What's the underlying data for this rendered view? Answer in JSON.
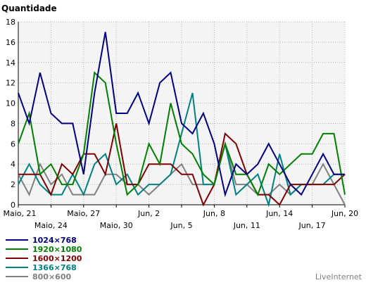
{
  "chart_data": {
    "type": "line",
    "title": "",
    "ylabel": "Quantidade",
    "xlabel": "",
    "ylim": [
      0,
      18
    ],
    "yticks": [
      0,
      2,
      4,
      6,
      8,
      10,
      12,
      14,
      16,
      18
    ],
    "grid": true,
    "x_count": 31,
    "xticks": [
      {
        "index": 0,
        "label": "Maio, 21",
        "row": 0
      },
      {
        "index": 3,
        "label": "Maio, 24",
        "row": 1
      },
      {
        "index": 6,
        "label": "Maio, 27",
        "row": 0
      },
      {
        "index": 9,
        "label": "Maio, 30",
        "row": 1
      },
      {
        "index": 12,
        "label": "Jun, 2",
        "row": 0
      },
      {
        "index": 15,
        "label": "Jun, 5",
        "row": 1
      },
      {
        "index": 18,
        "label": "Jun, 8",
        "row": 0
      },
      {
        "index": 21,
        "label": "Jun, 11",
        "row": 1
      },
      {
        "index": 24,
        "label": "Jun, 14",
        "row": 0
      },
      {
        "index": 27,
        "label": "Jun, 17",
        "row": 1
      },
      {
        "index": 30,
        "label": "Jun, 20",
        "row": 0
      }
    ],
    "legend_position": "bottom-left",
    "series": [
      {
        "name": "1024×768",
        "color": "#000080",
        "values": [
          11,
          8,
          13,
          9,
          8,
          8,
          3,
          11,
          17,
          9,
          9,
          11,
          8,
          12,
          13,
          8,
          7,
          9,
          6,
          1,
          4,
          3,
          4,
          6,
          4,
          2,
          1,
          3,
          5,
          3,
          3
        ]
      },
      {
        "name": "1920×1080",
        "color": "#008000",
        "values": [
          6,
          9,
          3,
          4,
          2,
          2,
          5,
          13,
          12,
          6,
          1,
          2,
          6,
          4,
          10,
          6,
          5,
          3,
          2,
          6,
          3,
          3,
          1,
          4,
          3,
          4,
          5,
          5,
          7,
          7,
          1
        ]
      },
      {
        "name": "1600×1200",
        "color": "#800000",
        "values": [
          3,
          3,
          3,
          1,
          4,
          3,
          5,
          5,
          3,
          8,
          2,
          2,
          4,
          4,
          4,
          3,
          3,
          0,
          2,
          7,
          6,
          3,
          1,
          1,
          0,
          2,
          2,
          2,
          2,
          2,
          3
        ]
      },
      {
        "name": "1366×768",
        "color": "#008080",
        "values": [
          2,
          4,
          2,
          1,
          1,
          3,
          1,
          4,
          5,
          2,
          3,
          1,
          2,
          2,
          3,
          7,
          11,
          2,
          2,
          6,
          1,
          2,
          3,
          0,
          5,
          1,
          2,
          2,
          2,
          3,
          3
        ]
      },
      {
        "name": "800×600",
        "color": "#808080",
        "values": [
          3,
          1,
          4,
          2,
          3,
          1,
          1,
          1,
          3,
          3,
          2,
          2,
          1,
          2,
          3,
          4,
          2,
          2,
          2,
          6,
          2,
          2,
          1,
          1,
          2,
          1,
          2,
          2,
          4,
          2,
          0
        ]
      }
    ]
  },
  "branding": "LiveInternet"
}
